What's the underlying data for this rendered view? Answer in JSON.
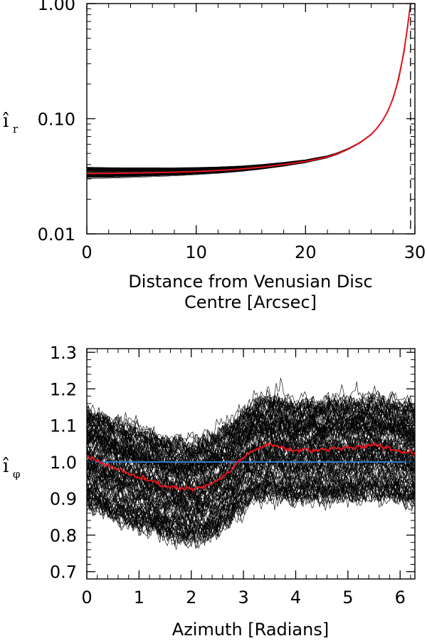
{
  "chart_data": [
    {
      "type": "line",
      "ylabel": "î",
      "ylabel_subscript": "r",
      "xlabel_lines": [
        "Distance from Venusian Disc",
        "Centre [Arcsec]"
      ],
      "xlim": [
        0,
        30
      ],
      "ylim": [
        0.01,
        1.0
      ],
      "yscale": "log",
      "xticks": [
        0,
        10,
        20,
        30
      ],
      "xtick_labels": [
        "0",
        "10",
        "20",
        "30"
      ],
      "yticks": [
        0.01,
        0.1,
        1.0
      ],
      "ytick_labels": [
        "0.01",
        "0.10",
        "1.00"
      ],
      "dashed_vline_x": 29.6,
      "ensemble_color": "#000000",
      "ensemble_count": 60,
      "ensemble_spread_at_centre": [
        0.03,
        0.038
      ],
      "series": [
        {
          "color": "#e8141c",
          "x": [
            0,
            2,
            4,
            6,
            8,
            10,
            12,
            14,
            16,
            18,
            20,
            22,
            23,
            24,
            25,
            26,
            26.5,
            27,
            27.5,
            28,
            28.5,
            29,
            29.3,
            29.6
          ],
          "y": [
            0.0335,
            0.0335,
            0.0337,
            0.034,
            0.0343,
            0.0348,
            0.0355,
            0.0365,
            0.038,
            0.04,
            0.0425,
            0.0465,
            0.05,
            0.055,
            0.062,
            0.073,
            0.082,
            0.095,
            0.115,
            0.15,
            0.22,
            0.38,
            0.6,
            1.0
          ]
        }
      ]
    },
    {
      "type": "line",
      "ylabel": "î",
      "ylabel_subscript": "φ",
      "xlabel": "Azimuth [Radians]",
      "xlim": [
        0,
        6.283
      ],
      "ylim": [
        0.68,
        1.31
      ],
      "xticks": [
        0,
        1,
        2,
        3,
        4,
        5,
        6
      ],
      "xtick_labels": [
        "0",
        "1",
        "2",
        "3",
        "4",
        "5",
        "6"
      ],
      "yticks": [
        0.7,
        0.8,
        0.9,
        1.0,
        1.1,
        1.2,
        1.3
      ],
      "ytick_labels": [
        "0.7",
        "0.8",
        "0.9",
        "1.0",
        "1.1",
        "1.2",
        "1.3"
      ],
      "ensemble_color": "#000000",
      "ensemble_count": 120,
      "ensemble_half_spread": 0.16,
      "series": [
        {
          "color": "#e8141c",
          "x": [
            0,
            0.25,
            0.5,
            0.75,
            1.0,
            1.25,
            1.5,
            1.75,
            2.0,
            2.25,
            2.5,
            2.75,
            3.0,
            3.25,
            3.5,
            3.75,
            4.0,
            4.25,
            4.5,
            4.75,
            5.0,
            5.25,
            5.5,
            5.75,
            6.0,
            6.283
          ],
          "y": [
            1.02,
            1.0,
            0.985,
            0.97,
            0.957,
            0.945,
            0.935,
            0.928,
            0.925,
            0.93,
            0.948,
            0.975,
            1.012,
            1.038,
            1.045,
            1.04,
            1.03,
            1.035,
            1.032,
            1.04,
            1.035,
            1.042,
            1.045,
            1.04,
            1.03,
            1.025
          ]
        },
        {
          "color": "#2f7fd6",
          "x": [
            0,
            6.283
          ],
          "y": [
            1.0,
            1.0
          ]
        }
      ]
    }
  ]
}
